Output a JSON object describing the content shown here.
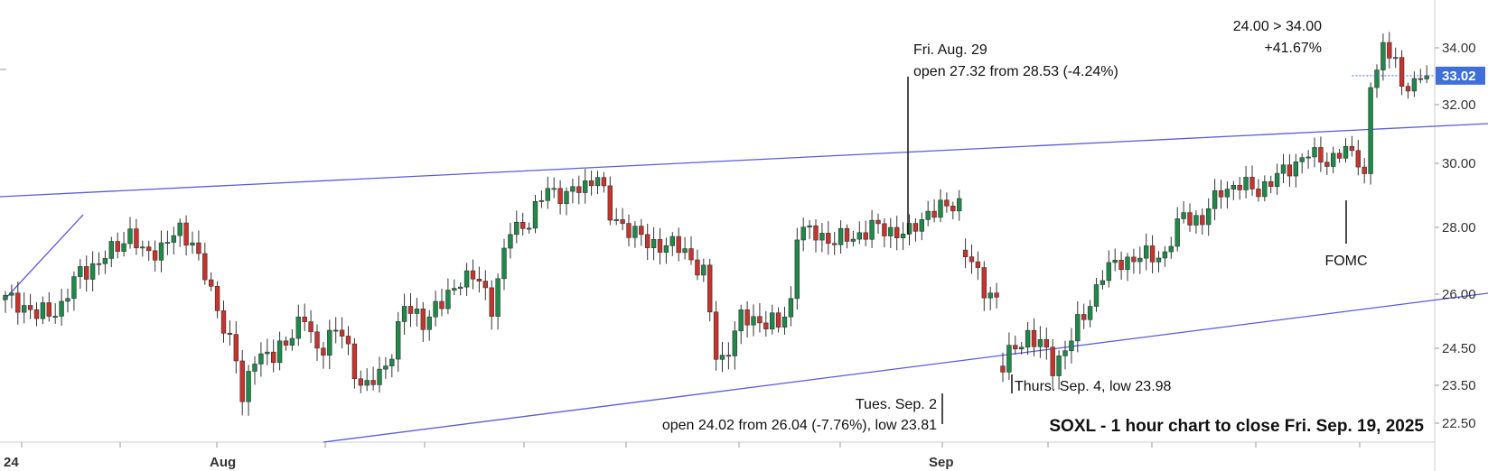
{
  "chart_data": {
    "type": "candlestick",
    "title": "SOXL - 1 hour chart to close Fri. Sep. 19, 2025",
    "y_axis": {
      "ticks": [
        "34.00",
        "33.02",
        "32.00",
        "30.00",
        "28.00",
        "26.00",
        "24.50",
        "23.50",
        "22.50"
      ],
      "tick_values": [
        34.0,
        32.0,
        30.0,
        28.0,
        26.0,
        24.5,
        23.5,
        22.5
      ],
      "side": "right"
    },
    "x_axis": {
      "ticks": [
        "24",
        "Aug",
        "Sep"
      ]
    },
    "last_price": {
      "value": 33.02,
      "label": "33.02",
      "color": "#3f6fd8"
    },
    "colors": {
      "up": "#1e8a4a",
      "down": "#c8332c",
      "trendline": "#5a5ae0",
      "grid": "#e5e5e5"
    },
    "annotations": {
      "aug29_title": "Fri. Aug. 29",
      "aug29_detail": "open 27.32 from 28.53 (-4.24%)",
      "sep2_title": "Tues. Sep. 2",
      "sep2_detail": "open 24.02 from 26.04 (-7.76%), low 23.81",
      "sep4": "Thurs. Sep. 4, low 23.98",
      "fomc": "FOMC",
      "move_range": "24.00 > 34.00",
      "move_pct": "+41.67%"
    },
    "waypoints": [
      [
        0,
        25.85
      ],
      [
        2,
        25.8
      ],
      [
        5,
        25.4
      ],
      [
        9,
        25.65
      ],
      [
        12,
        26.7
      ],
      [
        15,
        26.9
      ],
      [
        18,
        27.5
      ],
      [
        20,
        27.8
      ],
      [
        22,
        27.2
      ],
      [
        25,
        27.4
      ],
      [
        28,
        27.9
      ],
      [
        30,
        27.6
      ],
      [
        33,
        26.0
      ],
      [
        35,
        25.2
      ],
      [
        37,
        24.2
      ],
      [
        38,
        23.0
      ],
      [
        40,
        24.4
      ],
      [
        43,
        24.2
      ],
      [
        46,
        25.0
      ],
      [
        48,
        25.3
      ],
      [
        50,
        24.4
      ],
      [
        52,
        24.9
      ],
      [
        54,
        24.9
      ],
      [
        56,
        23.9
      ],
      [
        58,
        23.4
      ],
      [
        61,
        24.0
      ],
      [
        64,
        25.6
      ],
      [
        67,
        25.3
      ],
      [
        70,
        25.7
      ],
      [
        73,
        26.5
      ],
      [
        76,
        26.4
      ],
      [
        78,
        25.7
      ],
      [
        81,
        27.9
      ],
      [
        84,
        28.2
      ],
      [
        87,
        29.2
      ],
      [
        90,
        29.0
      ],
      [
        93,
        29.3
      ],
      [
        95,
        29.7
      ],
      [
        97,
        28.3
      ],
      [
        100,
        28.0
      ],
      [
        103,
        27.5
      ],
      [
        106,
        27.5
      ],
      [
        109,
        27.3
      ],
      [
        112,
        26.6
      ],
      [
        114,
        24.3
      ],
      [
        115,
        24.2
      ],
      [
        118,
        25.3
      ],
      [
        121,
        25.3
      ],
      [
        124,
        25.1
      ],
      [
        126,
        25.8
      ],
      [
        127,
        27.9
      ],
      [
        130,
        27.8
      ],
      [
        133,
        27.6
      ],
      [
        136,
        27.7
      ],
      [
        139,
        28.0
      ],
      [
        142,
        27.9
      ],
      [
        145,
        27.8
      ],
      [
        148,
        28.5
      ],
      [
        151,
        28.6
      ],
      [
        153,
        28.8
      ],
      [
        154,
        27.32
      ],
      [
        157,
        26.1
      ],
      [
        159,
        25.95
      ],
      [
        160,
        24.02
      ],
      [
        162,
        24.5
      ],
      [
        164,
        24.9
      ],
      [
        166,
        24.6
      ],
      [
        168,
        24.0
      ],
      [
        170,
        24.5
      ],
      [
        173,
        25.4
      ],
      [
        176,
        26.6
      ],
      [
        179,
        27.0
      ],
      [
        182,
        27.1
      ],
      [
        186,
        27.2
      ],
      [
        189,
        28.4
      ],
      [
        192,
        28.2
      ],
      [
        195,
        29.2
      ],
      [
        198,
        29.3
      ],
      [
        201,
        29.2
      ],
      [
        203,
        29.4
      ],
      [
        206,
        29.9
      ],
      [
        209,
        30.3
      ],
      [
        212,
        30.1
      ],
      [
        215,
        30.4
      ],
      [
        217,
        30.2
      ],
      [
        218,
        29.6
      ],
      [
        219,
        32.6
      ],
      [
        221,
        33.9
      ],
      [
        223,
        33.8
      ],
      [
        224,
        32.5
      ],
      [
        226,
        32.7
      ],
      [
        228,
        33.02
      ]
    ]
  }
}
